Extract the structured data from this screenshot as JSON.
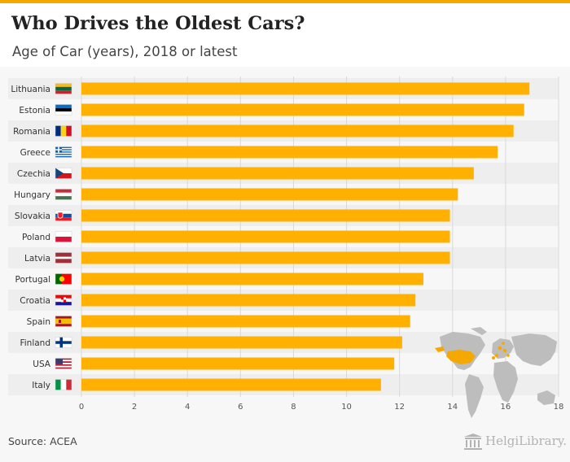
{
  "header": {
    "title": "Who Drives the Oldest Cars?",
    "subtitle": "Age of Car (years), 2018 or latest"
  },
  "footer": {
    "source": "Source: ACEA",
    "logo_text": "HelgiLibrary."
  },
  "colors": {
    "bar": "#ffb000",
    "accent": "#f5a800"
  },
  "chart_data": {
    "type": "bar",
    "orientation": "horizontal",
    "title": "Who Drives the Oldest Cars?",
    "subtitle": "Age of Car (years), 2018 or latest",
    "categories": [
      "Lithuania",
      "Estonia",
      "Romania",
      "Greece",
      "Czechia",
      "Hungary",
      "Slovakia",
      "Poland",
      "Latvia",
      "Portugal",
      "Croatia",
      "Spain",
      "Finland",
      "USA",
      "Italy"
    ],
    "flag_icons": [
      "flag-lithuania-icon",
      "flag-estonia-icon",
      "flag-romania-icon",
      "flag-greece-icon",
      "flag-czechia-icon",
      "flag-hungary-icon",
      "flag-slovakia-icon",
      "flag-poland-icon",
      "flag-latvia-icon",
      "flag-portugal-icon",
      "flag-croatia-icon",
      "flag-spain-icon",
      "flag-finland-icon",
      "flag-usa-icon",
      "flag-italy-icon"
    ],
    "values": [
      16.9,
      16.7,
      16.3,
      15.7,
      14.8,
      14.2,
      13.9,
      13.9,
      13.9,
      12.9,
      12.6,
      12.4,
      12.1,
      11.8,
      11.3
    ],
    "xlim": [
      0,
      18
    ],
    "xticks": [
      0,
      2,
      4,
      6,
      8,
      10,
      12,
      14,
      16,
      18
    ],
    "xlabel": "",
    "ylabel": "",
    "grid": true,
    "legend": "none",
    "inset": "world-map-icon"
  }
}
